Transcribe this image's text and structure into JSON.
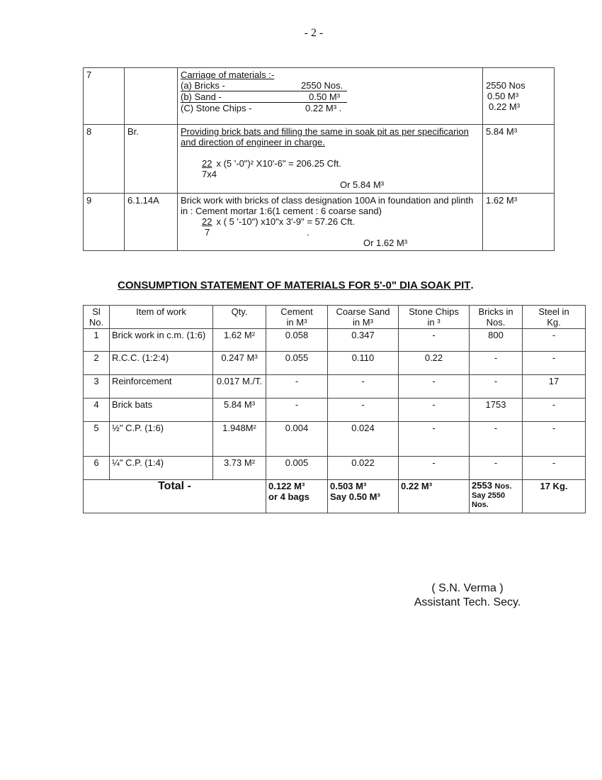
{
  "page_number": "- 2 -",
  "estimate_table": {
    "rows": [
      {
        "sl": "7",
        "code": "",
        "heading": "Carriage of materials :-",
        "items": [
          {
            "label": "(a)  Bricks  -",
            "value": "2550 Nos."
          },
          {
            "label": "(b)  Sand  -",
            "value": "0.50 M³"
          },
          {
            "label": "(C) Stone Chips -",
            "value": "0.22 M³ ."
          }
        ],
        "qty_lines": [
          "2550 Nos",
          "0.50 M³",
          "0.22 M³"
        ]
      },
      {
        "sl": "8",
        "code": "Br.",
        "heading": "Providing brick bats and filling the same  in soak pit as per specificarion and direction of engineer in charge.",
        "calc_numerator": "22",
        "calc_expr": "x  (5 '-0\")² X10'-6\"    = 206.25 Cft.",
        "calc_denominator": "7x4",
        "result": "Or 5.84 M³",
        "qty_lines": [
          "5.84 M³"
        ]
      },
      {
        "sl": "9",
        "code": "6.1.14A",
        "heading": "Brick work with bricks of class designation 100A in foundation and plinth in : Cement mortar 1:6(1 cement : 6 coarse sand)",
        "calc_numerator": "22",
        "calc_expr": "x  ( 5 '-10\") x10\"x 3'-9\"   = 57.26 Cft.",
        "calc_denominator": "7",
        "dot": ".",
        "result": "Or 1.62 M³",
        "qty_lines": [
          "1.62 M³"
        ]
      }
    ]
  },
  "consumption": {
    "title": "CONSUMPTION  STATEMENT OF MATERIALS FOR 5'-0\" DIA SOAK PIT",
    "title_suffix": ".",
    "headers": [
      "Sl\nNo.",
      "Item of work",
      "Qty.",
      "Cement\nin M³",
      "Coarse Sand\nin M³",
      "Stone Chips\nin ³",
      "Bricks in\nNos.",
      "Steel in\nKg."
    ],
    "rows": [
      [
        "1",
        "Brick work in c.m. (1:6)",
        "1.62 M²",
        "0.058",
        "0.347",
        "-",
        "800",
        "-"
      ],
      [
        "2",
        "R.C.C. (1:2:4)",
        "0.247 M³",
        "0.055",
        "0.110",
        "0.22",
        "-",
        "-"
      ],
      [
        "3",
        "Reinforcement",
        "0.017 M./T.",
        "-",
        "-",
        "-",
        "-",
        "17"
      ],
      [
        "4",
        "Brick bats",
        "5.84 M³",
        "-",
        "-",
        "-",
        "1753",
        "-"
      ],
      [
        "5",
        "½\" C.P. (1:6)",
        "1.948M²",
        "0.004",
        "0.024",
        "-",
        "-",
        "-"
      ],
      [
        "6",
        "¼\" C.P. (1:4)",
        "3.73 M²",
        "0.005",
        "0.022",
        "-",
        "-",
        "-"
      ]
    ],
    "total": {
      "label": "Total -",
      "cement": [
        "0.122 M³",
        "or 4 bags"
      ],
      "sand": [
        "0.503 M³",
        "Say 0.50 M³"
      ],
      "stone": "0.22 M³",
      "bricks": [
        "2553",
        "Nos.",
        "Say 2550",
        "Nos."
      ],
      "steel": "17 Kg."
    }
  },
  "signature": {
    "name": "( S.N. Verma )",
    "designation": "Assistant Tech. Secy."
  }
}
